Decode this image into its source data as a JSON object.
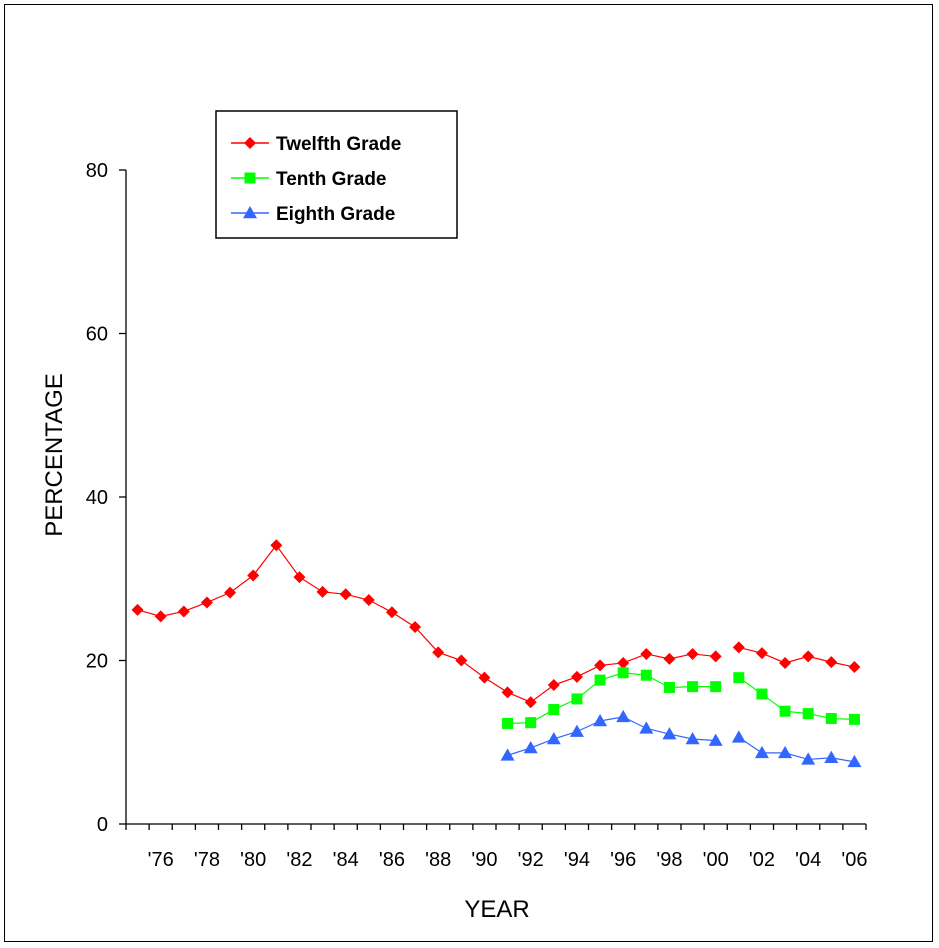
{
  "chart_data": {
    "type": "line",
    "xlabel": "YEAR",
    "ylabel": "PERCENTAGE",
    "ylim": [
      0,
      80
    ],
    "yticks": [
      0,
      20,
      40,
      60,
      80
    ],
    "xlim": [
      1975,
      2006
    ],
    "xtick_labels": [
      "'76",
      "'78",
      "'80",
      "'82",
      "'84",
      "'86",
      "'88",
      "'90",
      "'92",
      "'94",
      "'96",
      "'98",
      "'00",
      "'02",
      "'04",
      "'06"
    ],
    "xtick_years": [
      1976,
      1978,
      1980,
      1982,
      1984,
      1986,
      1988,
      1990,
      1992,
      1994,
      1996,
      1998,
      2000,
      2002,
      2004,
      2006
    ],
    "legend_position": "top-left",
    "grid": false,
    "series": [
      {
        "name": "Twelfth Grade",
        "color": "#ff0000",
        "marker": "diamond",
        "segments": [
          {
            "x": [
              1975,
              1976,
              1977,
              1978,
              1979,
              1980,
              1981,
              1982,
              1983,
              1984,
              1985,
              1986,
              1987,
              1988,
              1989,
              1990,
              1991,
              1992,
              1993,
              1994,
              1995,
              1996,
              1997,
              1998,
              1999,
              2000
            ],
            "y": [
              26.2,
              25.4,
              26.0,
              27.1,
              28.3,
              30.4,
              34.1,
              30.2,
              28.4,
              28.1,
              27.4,
              25.9,
              24.1,
              21.0,
              20.0,
              17.9,
              16.1,
              14.9,
              17.0,
              18.0,
              19.4,
              19.7,
              20.8,
              20.2,
              20.8,
              20.5
            ]
          },
          {
            "x": [
              2001,
              2002,
              2003,
              2004,
              2005,
              2006
            ],
            "y": [
              21.6,
              20.9,
              19.7,
              20.5,
              19.8,
              19.2
            ]
          }
        ]
      },
      {
        "name": "Tenth Grade",
        "color": "#00ff00",
        "marker": "square",
        "segments": [
          {
            "x": [
              1991,
              1992,
              1993,
              1994,
              1995,
              1996,
              1997,
              1998,
              1999,
              2000
            ],
            "y": [
              12.3,
              12.4,
              14.0,
              15.3,
              17.6,
              18.5,
              18.2,
              16.7,
              16.8,
              16.8
            ]
          },
          {
            "x": [
              2001,
              2002,
              2003,
              2004,
              2005,
              2006
            ],
            "y": [
              17.9,
              15.9,
              13.8,
              13.5,
              12.9,
              12.8
            ]
          }
        ]
      },
      {
        "name": "Eighth Grade",
        "color": "#3366ff",
        "marker": "triangle",
        "segments": [
          {
            "x": [
              1991,
              1992,
              1993,
              1994,
              1995,
              1996,
              1997,
              1998,
              1999,
              2000
            ],
            "y": [
              8.4,
              9.3,
              10.4,
              11.3,
              12.6,
              13.1,
              11.7,
              11.0,
              10.4,
              10.2
            ]
          },
          {
            "x": [
              2001,
              2002,
              2003,
              2004,
              2005,
              2006
            ],
            "y": [
              10.6,
              8.7,
              8.7,
              7.9,
              8.1,
              7.6
            ]
          }
        ]
      }
    ]
  }
}
